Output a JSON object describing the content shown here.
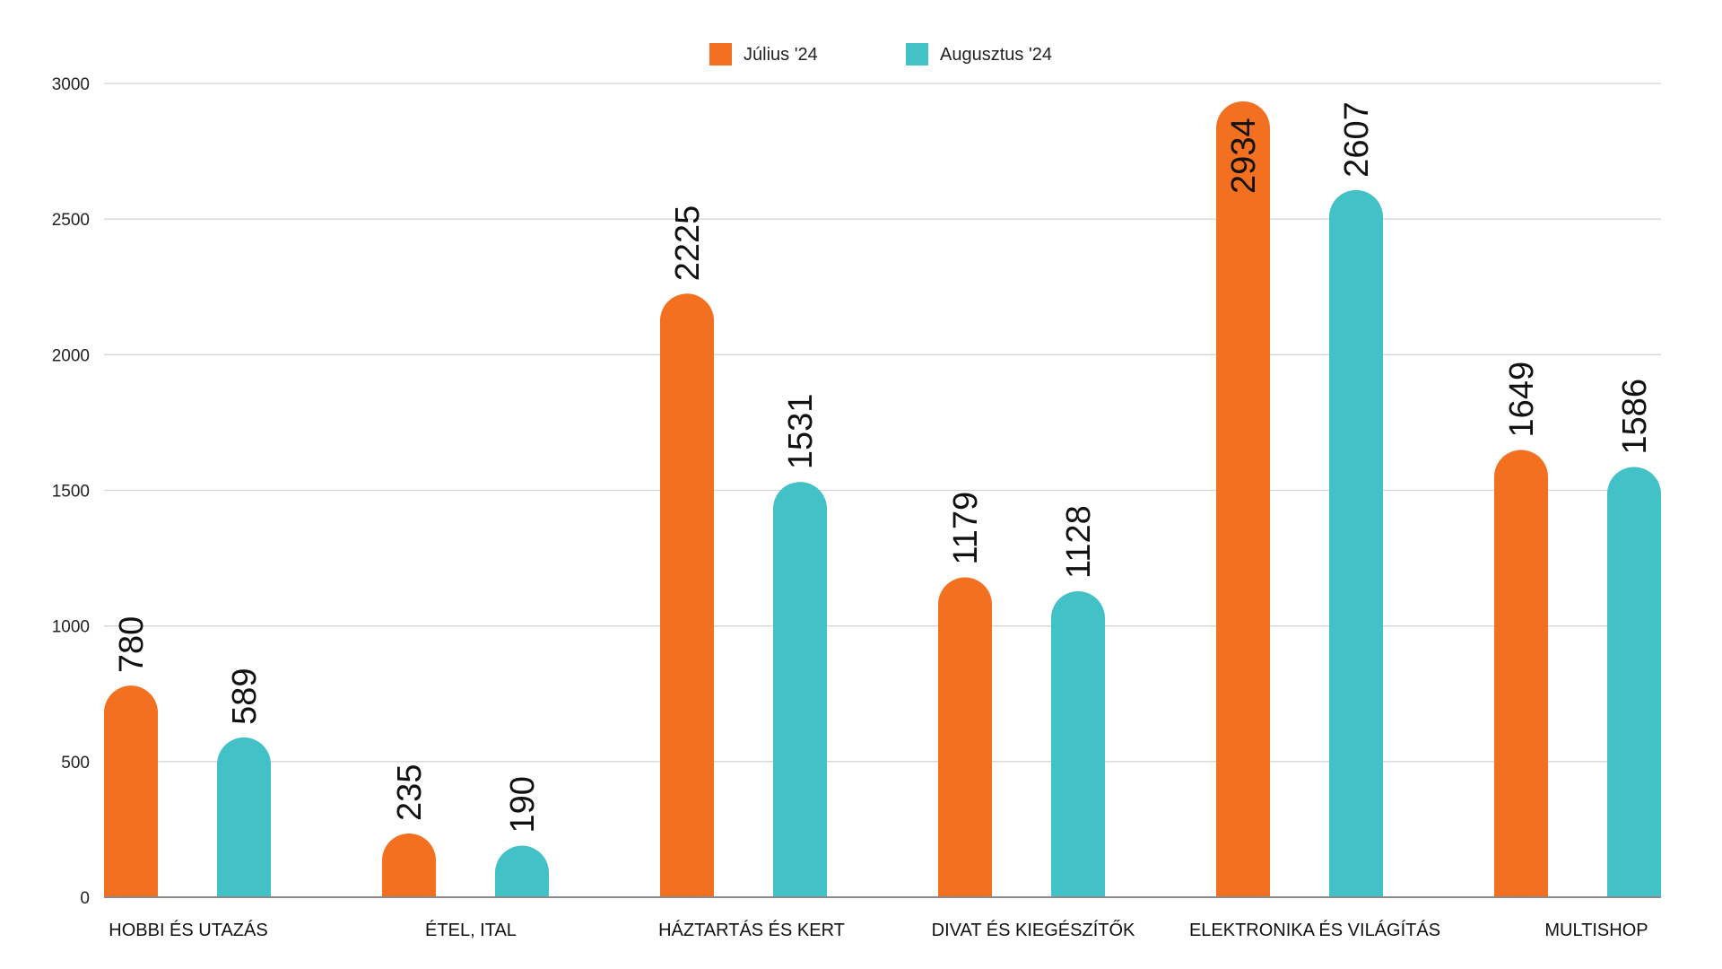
{
  "chart_data": {
    "type": "bar",
    "title": "",
    "xlabel": "",
    "ylabel": "",
    "ylim": [
      0,
      3000
    ],
    "yticks": [
      0,
      500,
      1000,
      1500,
      2000,
      2500,
      3000
    ],
    "grid": true,
    "legend_position": "top-center",
    "categories": [
      "HOBBI ÉS UTAZÁS",
      "ÉTEL, ITAL",
      "HÁZTARTÁS ÉS KERT",
      "DIVAT ÉS KIEGÉSZÍTŐK",
      "ELEKTRONIKA ÉS VILÁGÍTÁS",
      "MULTISHOP"
    ],
    "series": [
      {
        "name": "Július '24",
        "color": "#F37021",
        "values": [
          780,
          235,
          2225,
          1179,
          2934,
          1649
        ]
      },
      {
        "name": "Augusztus '24",
        "color": "#42C1C6",
        "values": [
          589,
          190,
          1531,
          1128,
          2607,
          1586
        ]
      }
    ],
    "data_labels": true
  }
}
